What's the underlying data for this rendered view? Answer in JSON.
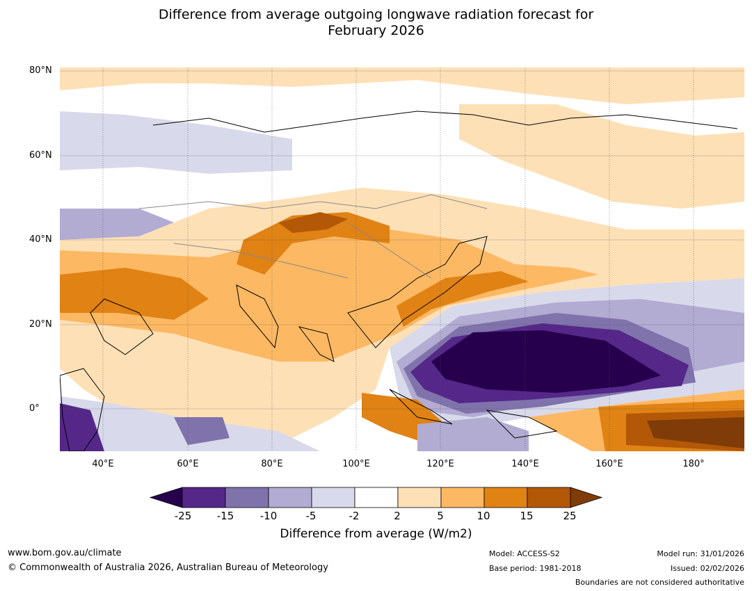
{
  "title_line1": "Difference from average outgoing longwave radiation forecast for",
  "title_line2": "February 2026",
  "lat_labels": [
    "80°N",
    "60°N",
    "40°N",
    "20°N",
    "0°"
  ],
  "lon_labels": [
    "40°E",
    "60°E",
    "80°E",
    "100°E",
    "120°E",
    "140°E",
    "160°E",
    "180°"
  ],
  "colorbar": {
    "ticks": [
      "-25",
      "-15",
      "-10",
      "-5",
      "-2",
      "2",
      "5",
      "10",
      "15",
      "25"
    ],
    "title": "Difference from average (W/m2)",
    "colors": [
      "#26004d",
      "#542788",
      "#8073ac",
      "#b2abd2",
      "#d8daeb",
      "#ffffff",
      "#fee0b6",
      "#fdb863",
      "#e08214",
      "#b35806",
      "#7f3b08"
    ]
  },
  "footer": {
    "website": "www.bom.gov.au/climate",
    "copyright": "© Commonwealth of Australia 2026, Australian Bureau of Meteorology",
    "model": "Model: ACCESS-S2",
    "base_period": "Base period: 1981-2018",
    "model_run": "Model run: 31/01/2026",
    "issued": "Issued: 02/02/2026",
    "disclaimer": "Boundaries are not considered authoritative"
  }
}
